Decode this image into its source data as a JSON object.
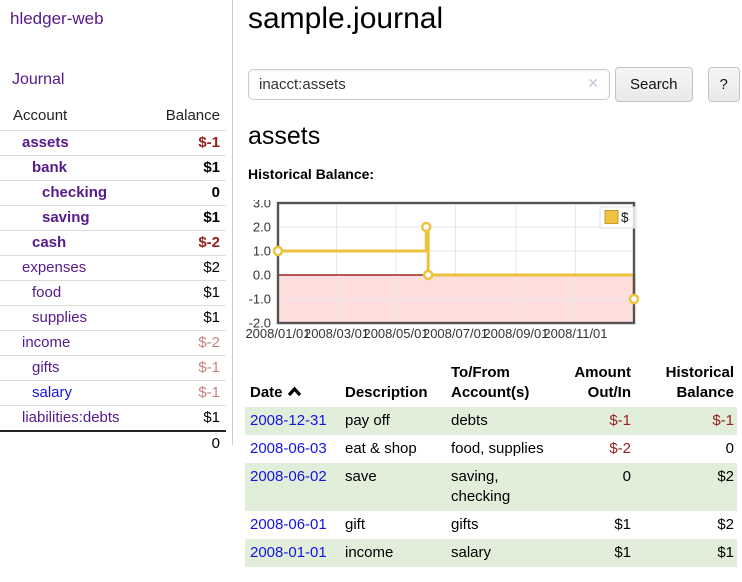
{
  "app": {
    "title": "hledger-web"
  },
  "colors": {
    "accent_purple": "#551a8b",
    "link_blue": "#1414e6",
    "negative": "#97211f",
    "negative_faded": "#c5837f",
    "row_shade_green": "#e0eeda",
    "chart_series_gold": "#edc240",
    "chart_negative_region": "#ffdddd",
    "chart_zero_line": "#8b0000",
    "chart_border": "#545454"
  },
  "sidebar": {
    "journal_link": "Journal",
    "accounts": {
      "header_account": "Account",
      "header_balance": "Balance",
      "rows": [
        {
          "name": "assets",
          "depth": 1,
          "bold": true,
          "link": "purple",
          "balance": "$-1",
          "amount_color": "neg"
        },
        {
          "name": "bank",
          "depth": 2,
          "bold": true,
          "link": "purple",
          "balance": "$1",
          "amount_color": ""
        },
        {
          "name": "checking",
          "depth": 3,
          "bold": true,
          "link": "purple",
          "balance": "0",
          "amount_color": ""
        },
        {
          "name": "saving",
          "depth": 3,
          "bold": true,
          "link": "purple",
          "balance": "$1",
          "amount_color": ""
        },
        {
          "name": "cash",
          "depth": 2,
          "bold": true,
          "link": "purple",
          "balance": "$-2",
          "amount_color": "neg"
        },
        {
          "name": "expenses",
          "depth": 1,
          "bold": false,
          "link": "purple",
          "balance": "$2",
          "amount_color": ""
        },
        {
          "name": "food",
          "depth": 2,
          "bold": false,
          "link": "purple",
          "balance": "$1",
          "amount_color": ""
        },
        {
          "name": "supplies",
          "depth": 2,
          "bold": false,
          "link": "purple",
          "balance": "$1",
          "amount_color": ""
        },
        {
          "name": "income",
          "depth": 1,
          "bold": false,
          "link": "purple",
          "balance": "$-2",
          "amount_color": "neg-faded"
        },
        {
          "name": "gifts",
          "depth": 2,
          "bold": false,
          "link": "purple",
          "balance": "$-1",
          "amount_color": "neg-faded"
        },
        {
          "name": "salary",
          "depth": 2,
          "bold": false,
          "link": "blue",
          "balance": "$-1",
          "amount_color": "neg-faded"
        },
        {
          "name": "liabilities:debts",
          "depth": 1,
          "bold": false,
          "link": "purple",
          "balance": "$1",
          "amount_color": ""
        }
      ],
      "total": "0"
    }
  },
  "main": {
    "title": "sample.journal",
    "search": {
      "value": "inacct:assets",
      "clear_icon": "✕",
      "button_label": "Search",
      "help_label": "?"
    },
    "account_heading": "assets",
    "chart_label": "Historical Balance:"
  },
  "chart_data": {
    "type": "line",
    "step": true,
    "series": [
      {
        "name": "$",
        "color": "#edc240",
        "points": [
          [
            "2008-01-01",
            1
          ],
          [
            "2008-06-01",
            2
          ],
          [
            "2008-06-03",
            0
          ],
          [
            "2008-12-31",
            -1
          ]
        ]
      }
    ],
    "x_range": [
      "2008-01-01",
      "2008-12-31"
    ],
    "x_tick_labels": [
      "2008/01/01",
      "2008/03/01",
      "2008/05/01",
      "2008/07/01",
      "2008/09/01",
      "2008/11/01"
    ],
    "y_ticks": [
      3,
      2,
      1,
      0,
      -1,
      -2
    ],
    "ylim": [
      -2,
      3
    ],
    "grid": true,
    "legend_position": "top-right",
    "legend_label": "$",
    "negative_region_color": "#ffdddd",
    "zero_line_color": "#8b0000",
    "title": "",
    "xlabel": "",
    "ylabel": ""
  },
  "transactions": {
    "headers": {
      "date": "Date",
      "description": "Description",
      "accounts": "To/From Account(s)",
      "amount": "Amount Out/In",
      "balance": "Historical Balance"
    },
    "rows": [
      {
        "date": "2008-12-31",
        "description": "pay off",
        "accounts": "debts",
        "amount": "$-1",
        "amount_color": "neg",
        "balance": "$-1",
        "balance_color": "neg",
        "shaded": true
      },
      {
        "date": "2008-06-03",
        "description": "eat & shop",
        "accounts": "food, supplies",
        "amount": "$-2",
        "amount_color": "neg",
        "balance": "0",
        "balance_color": "",
        "shaded": false
      },
      {
        "date": "2008-06-02",
        "description": "save",
        "accounts": "saving, checking",
        "amount": "0",
        "amount_color": "",
        "balance": "$2",
        "balance_color": "",
        "shaded": true
      },
      {
        "date": "2008-06-01",
        "description": "gift",
        "accounts": "gifts",
        "amount": "$1",
        "amount_color": "",
        "balance": "$2",
        "balance_color": "",
        "shaded": false
      },
      {
        "date": "2008-01-01",
        "description": "income",
        "accounts": "salary",
        "amount": "$1",
        "amount_color": "",
        "balance": "$1",
        "balance_color": "",
        "shaded": true
      }
    ]
  }
}
